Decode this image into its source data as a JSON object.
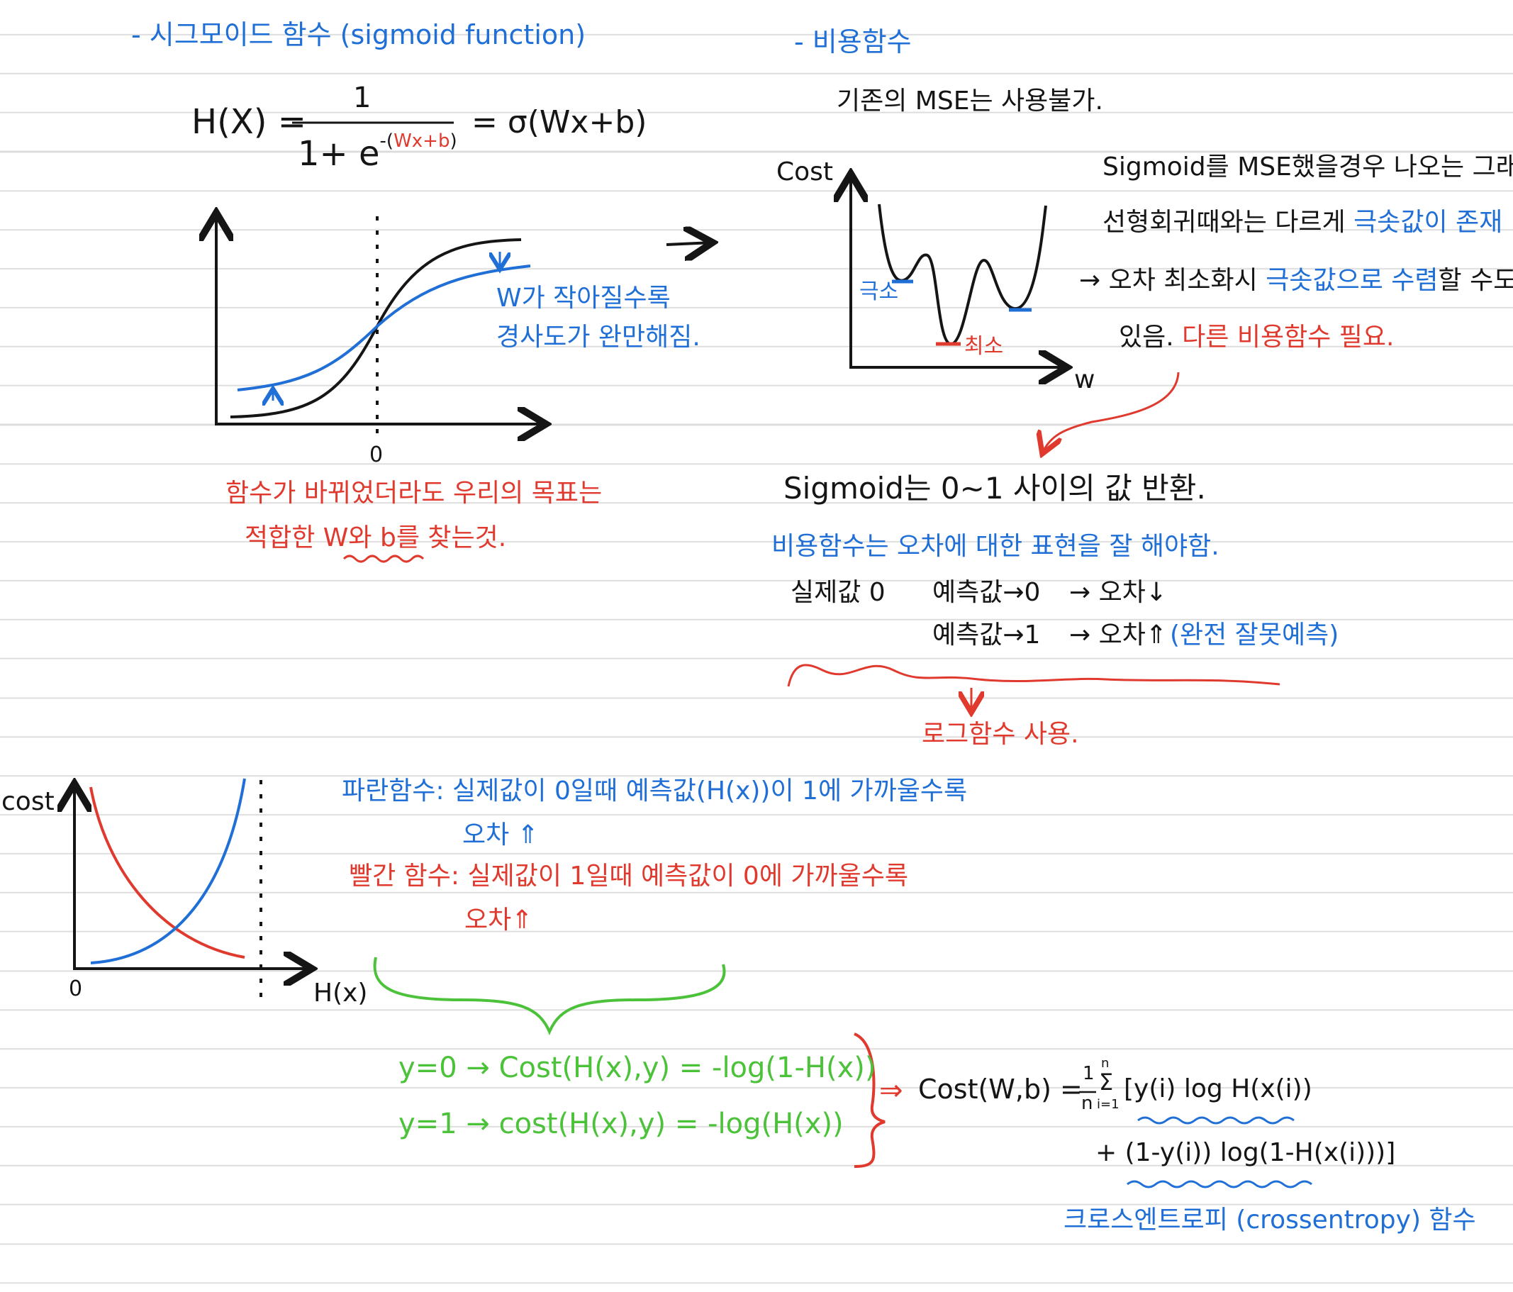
{
  "sections": {
    "sigmoid_title": "- 시그모이드 함수 (sigmoid function)",
    "cost_title": "- 비용함수"
  },
  "sigmoid": {
    "formula_lhs": "H(X) =",
    "numerator": "1",
    "denominator_base": "1+ e",
    "exponent_open": "-(",
    "exponent_highlight": "Wx+b",
    "exponent_close": ")",
    "formula_rhs": "= σ(Wx+b)",
    "graph_zero": "0",
    "graph_note_line1": "W가 작아질수록",
    "graph_note_line2": "경사도가 완만해짐.",
    "goal_line1": "함수가 바뀌었더라도 우리의 목표는",
    "goal_line2": "적합한 W와 b를 찾는것."
  },
  "cost": {
    "mse_note": "기존의 MSE는 사용불가.",
    "axis_cost": "Cost",
    "axis_w": "w",
    "local_label": "극소",
    "global_label": "최소",
    "desc_line1": "Sigmoid를 MSE했을경우 나오는 그래프.",
    "desc_line2_a": "선형회귀때와는 다르게 ",
    "desc_line2_b": "극솟값이 존재",
    "desc_line3_a": "→ 오차 최소화시 ",
    "desc_line3_b": "극솟값으로 수렴",
    "desc_line3_c": "할 수도",
    "desc_line4_a": "있음. ",
    "desc_line4_b": "다른 비용함수 필요."
  },
  "sigmoid_range": {
    "line1": "Sigmoid는 0~1 사이의 값 반환.",
    "line2": "비용함수는 오차에 대한 표현을 잘 해야함.",
    "line3_a": "실제값 0",
    "line3_b": "예측값→0",
    "line3_c": "→ 오차↓",
    "line4_a": "예측값→1",
    "line4_b": "→ 오차⇑",
    "line4_c": "(완전 잘못예측)",
    "conclusion": "로그함수 사용."
  },
  "log_graph": {
    "axis_cost": "cost",
    "axis_hx": "H(x)",
    "zero": "0"
  },
  "log_notes": {
    "blue_a": "파란함수: 실제값이 0일때 예측값(H(x))이 1에 가까울수록",
    "blue_b": "오차 ⇑",
    "red_a": "빨간 함수: 실제값이 1일때 예측값이 0에 가까울수록",
    "red_b": "오차⇑"
  },
  "cases": {
    "y0": "y=0 → Cost(H(x),y) = -log(1-H(x))",
    "y1": "y=1 → cost(H(x),y) = -log(H(x))"
  },
  "final": {
    "arrow": "⇒",
    "lhs": "Cost(W,b) =",
    "frac_num": "1",
    "frac_den": "n",
    "sum_symbol": "Σ",
    "sum_top": "n",
    "sum_bottom": "i=1",
    "term1": "[y(i) log H(x(i))",
    "term2": "+ (1-y(i)) log(1-H(x(i)))]",
    "name": "크로스엔트로피 (crossentropy) 함수"
  },
  "colors": {
    "blue": "#1f6fd6",
    "red": "#e03a2f",
    "green": "#4cc23a",
    "black": "#151515",
    "rule": "#dcdcdc"
  }
}
